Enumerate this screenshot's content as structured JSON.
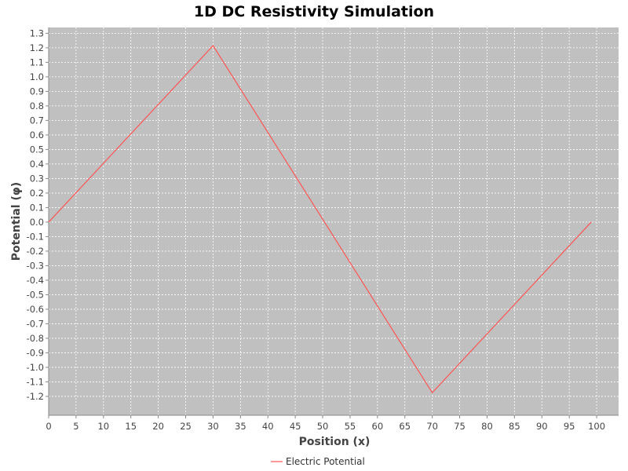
{
  "chart_data": {
    "type": "line",
    "title": "1D DC Resistivity Simulation",
    "xlabel": "Position (x)",
    "ylabel": "Potential (φ)",
    "xlim": [
      0,
      104
    ],
    "ylim": [
      -1.33,
      1.34
    ],
    "xticks": [
      0,
      5,
      10,
      15,
      20,
      25,
      30,
      35,
      40,
      45,
      50,
      55,
      60,
      65,
      70,
      75,
      80,
      85,
      90,
      95,
      100
    ],
    "yticks": [
      -1.2,
      -1.1,
      -1.0,
      -0.9,
      -0.8,
      -0.7,
      -0.6,
      -0.5,
      -0.4,
      -0.3,
      -0.2,
      -0.1,
      0.0,
      0.1,
      0.2,
      0.3,
      0.4,
      0.5,
      0.6,
      0.7,
      0.8,
      0.9,
      1.0,
      1.1,
      1.2,
      1.3
    ],
    "grid": true,
    "legend_position": "bottom-center",
    "series": [
      {
        "name": "Electric Potential",
        "color": "#ff5555",
        "points": [
          {
            "x": 0,
            "y": 0.0
          },
          {
            "x": 30,
            "y": 1.215
          },
          {
            "x": 70,
            "y": -1.175
          },
          {
            "x": 99,
            "y": 0.0
          }
        ]
      }
    ]
  },
  "colors": {
    "plot_background": "#c0c0c0",
    "grid": "#ffffff",
    "axis": "#888888"
  }
}
